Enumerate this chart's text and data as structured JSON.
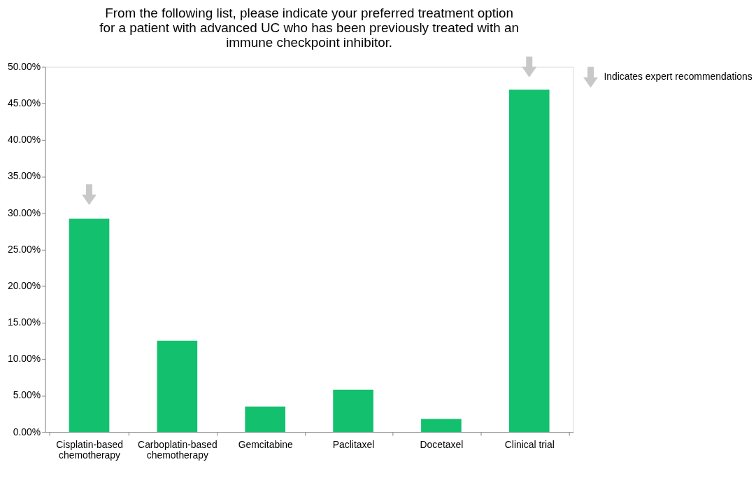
{
  "chart_data": {
    "type": "bar",
    "title": "From the following list, please indicate your preferred treatment option for a patient with advanced UC who has been previously treated with an immune checkpoint inhibitor.",
    "categories": [
      "Cisplatin-based chemotherapy",
      "Carboplatin-based chemotherapy",
      "Gemcitabine",
      "Paclitaxel",
      "Docetaxel",
      "Clinical trial"
    ],
    "values": [
      29.2,
      12.5,
      3.5,
      5.8,
      1.8,
      46.9
    ],
    "color": "#13c06e",
    "series": [
      {
        "type": "scatter",
        "name": "Indicates expert recommendations",
        "color": "#c8c8c8",
        "x": [
          "Cisplatin-based chemotherapy",
          "Clinical trial"
        ],
        "values": [
          32.5,
          50
        ]
      }
    ],
    "ylim": [
      0,
      50
    ],
    "yticks": [
      {
        "value": 0,
        "label": "0.00%"
      },
      {
        "value": 5,
        "label": "5.00%"
      },
      {
        "value": 10,
        "label": "10.00%"
      },
      {
        "value": 15,
        "label": "15.00%"
      },
      {
        "value": 20,
        "label": "20.00%"
      },
      {
        "value": 25,
        "label": "25.00%"
      },
      {
        "value": 30,
        "label": "30.00%"
      },
      {
        "value": 35,
        "label": "35.00%"
      },
      {
        "value": 40,
        "label": "40.00%"
      },
      {
        "value": 45,
        "label": "45.00%"
      },
      {
        "value": 50,
        "label": "50.00%"
      }
    ],
    "grid": false,
    "legend": "right"
  }
}
